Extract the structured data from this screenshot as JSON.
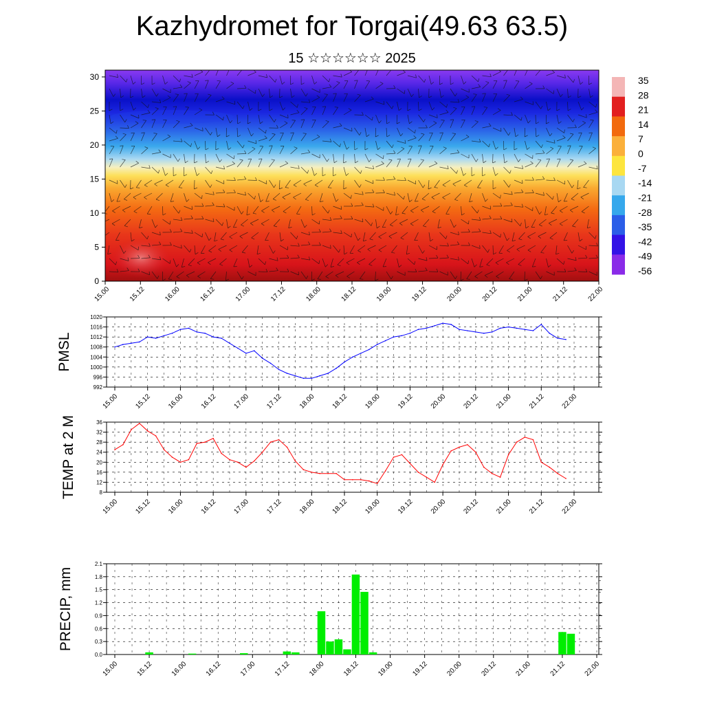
{
  "title": "Kazhydromet for Torgai(49.63 63.5)",
  "subtitle": "15 ☆☆☆☆☆☆ 2025",
  "x_ticks": [
    "15.00",
    "15.12",
    "16.00",
    "16.12",
    "17.00",
    "17.12",
    "18.00",
    "18.12",
    "19.00",
    "19.12",
    "20.00",
    "20.12",
    "21.00",
    "21.12",
    "22.00"
  ],
  "colorbar": {
    "labels": [
      "35",
      "28",
      "21",
      "14",
      "7",
      "0",
      "-7",
      "-14",
      "-21",
      "-28",
      "-35",
      "-42",
      "-49",
      "-56"
    ],
    "colors": [
      "#f4b6b6",
      "#e21f1f",
      "#f26a0e",
      "#fbb03b",
      "#fde53e",
      "#a8d8f2",
      "#36a8ec",
      "#2b5ee8",
      "#3312e6",
      "#8a2be8"
    ]
  },
  "chart_data": [
    {
      "type": "heatmap",
      "title": "",
      "xlabel": "",
      "ylabel": "",
      "x_range": [
        "15.00",
        "22.00"
      ],
      "ylim": [
        0,
        31
      ],
      "y_ticks": [
        0,
        5,
        10,
        15,
        20,
        25,
        30
      ],
      "variable": "temperature with wind barbs",
      "colorbar_range": [
        -56,
        35
      ]
    },
    {
      "type": "line",
      "ylabel": "PMSL",
      "ylim": [
        992,
        1020
      ],
      "y_ticks": [
        992,
        996,
        1000,
        1004,
        1008,
        1012,
        1016,
        1020
      ],
      "x_step_hours": 3,
      "color": "#0000ff",
      "values": [
        1008,
        1009,
        1009.5,
        1010,
        1012,
        1011.5,
        1012.5,
        1013.5,
        1015,
        1015.5,
        1014,
        1013.5,
        1012,
        1011.5,
        1009.5,
        1007.5,
        1005.5,
        1006.5,
        1003.5,
        1001.5,
        999,
        997.5,
        996.5,
        995.5,
        995.5,
        996.5,
        997.5,
        999.5,
        1002,
        1004,
        1005.5,
        1007,
        1009,
        1010.5,
        1012,
        1012.5,
        1013.5,
        1015,
        1015.5,
        1016.5,
        1017.5,
        1017,
        1015,
        1014.5,
        1014,
        1013.5,
        1014,
        1015.5,
        1016,
        1015.5,
        1015,
        1014.5,
        1017,
        1013.5,
        1011.5,
        1011
      ]
    },
    {
      "type": "line",
      "ylabel": "TEMP at 2 M",
      "ylim": [
        8,
        36
      ],
      "y_ticks": [
        8,
        12,
        16,
        20,
        24,
        28,
        32,
        36
      ],
      "x_step_hours": 3,
      "color": "#ff0000",
      "values": [
        25,
        27,
        33,
        35.5,
        32.5,
        30.5,
        25,
        22,
        20,
        21,
        27.5,
        28,
        29.5,
        23.5,
        21,
        20,
        18,
        20.5,
        24,
        28,
        29,
        26,
        20.5,
        17,
        16,
        15.5,
        15.5,
        15.5,
        13,
        13,
        13,
        12.5,
        11.5,
        16.5,
        22,
        23,
        19.5,
        16,
        14,
        12,
        19,
        24.5,
        26,
        27,
        24,
        18,
        15.5,
        14,
        23,
        28,
        30,
        29,
        20,
        18,
        15.5,
        13.5
      ]
    },
    {
      "type": "bar",
      "ylabel": "PRECIP, mm",
      "ylim": [
        0,
        2.1
      ],
      "y_ticks": [
        0.0,
        0.3,
        0.6,
        0.9,
        1.2,
        1.5,
        1.8,
        2.1
      ],
      "x_step_hours": 3,
      "color": "#00ee00",
      "values": [
        0,
        0,
        0,
        0,
        0.05,
        0,
        0,
        0,
        0,
        0.02,
        0,
        0,
        0,
        0,
        0,
        0.03,
        0,
        0,
        0,
        0,
        0.07,
        0.05,
        0,
        0,
        1.0,
        0.3,
        0.35,
        0.12,
        1.85,
        1.45,
        0.05,
        0,
        0,
        0,
        0,
        0,
        0,
        0,
        0,
        0,
        0,
        0,
        0,
        0,
        0,
        0,
        0,
        0,
        0,
        0,
        0,
        0,
        0.52,
        0.48,
        0,
        0
      ]
    }
  ]
}
